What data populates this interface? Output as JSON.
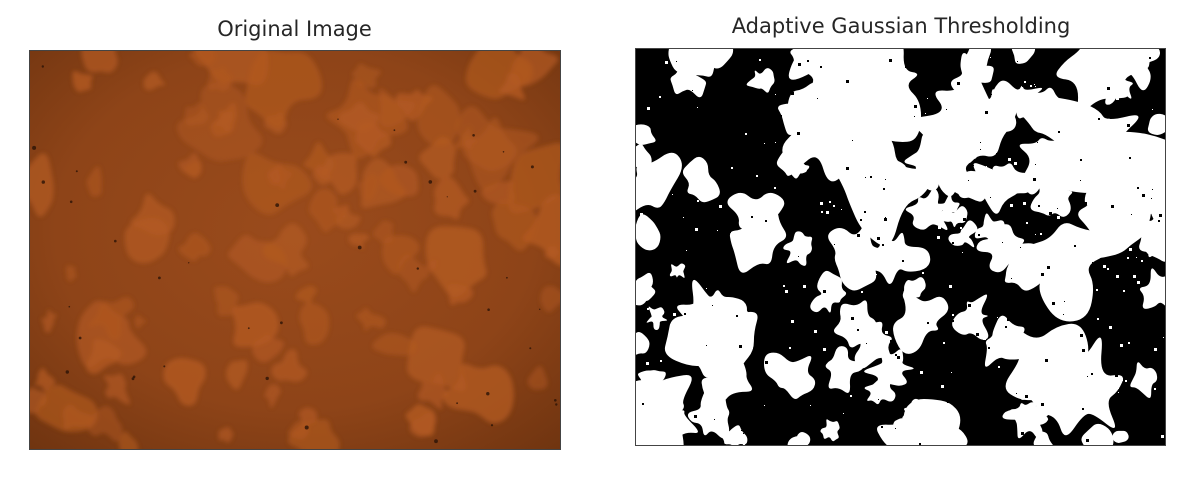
{
  "panels": {
    "left": {
      "title": "Original Image"
    },
    "right": {
      "title": "Adaptive Gaussian Thresholding"
    }
  },
  "colors": {
    "orange_base": "#8f4519",
    "orange_blob": "#b35a22",
    "orange_edge": "#7a3a14",
    "threshold_background": "#000000",
    "threshold_foreground": "#ffffff"
  }
}
